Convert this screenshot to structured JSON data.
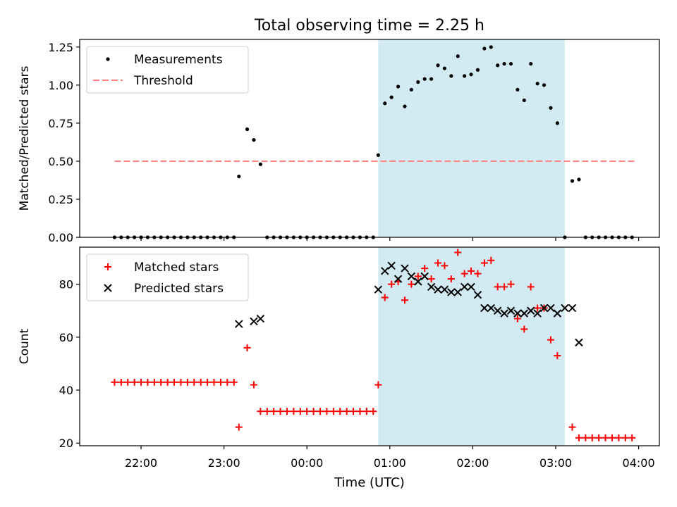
{
  "figure": {
    "title": "Total observing time = 2.25 h",
    "xlabel": "Time (UTC)",
    "xticks": [
      {
        "t": 22,
        "label": "22:00"
      },
      {
        "t": 23,
        "label": "23:00"
      },
      {
        "t": 24,
        "label": "00:00"
      },
      {
        "t": 25,
        "label": "01:00"
      },
      {
        "t": 26,
        "label": "02:00"
      },
      {
        "t": 27,
        "label": "03:00"
      },
      {
        "t": 28,
        "label": "04:00"
      }
    ],
    "xlim_hours": [
      21.26,
      28.25
    ],
    "observing_window_hours": [
      24.86,
      27.11
    ],
    "colors": {
      "span": "#add8e6",
      "threshold": "#ff7f7f",
      "matched": "#ff0000",
      "predicted": "#000000",
      "measurements": "#000000"
    }
  },
  "chart_data": [
    {
      "type": "scatter",
      "ylabel": "Matched/Predicted stars",
      "ylim": [
        0,
        1.3
      ],
      "yticks": [
        "0.00",
        "0.25",
        "0.50",
        "0.75",
        "1.00",
        "1.25"
      ],
      "legend": {
        "position": "top-left",
        "entries": [
          "Measurements",
          "Threshold"
        ]
      },
      "threshold": {
        "name": "Threshold",
        "y": 0.5,
        "x_range": [
          21.68,
          27.95
        ]
      },
      "series": [
        {
          "name": "Measurements",
          "marker": "dot",
          "x": [
            21.68,
            21.76,
            21.84,
            21.92,
            22.0,
            22.08,
            22.16,
            22.24,
            22.32,
            22.4,
            22.48,
            22.56,
            22.64,
            22.72,
            22.8,
            22.88,
            22.96,
            23.04,
            23.12,
            23.18,
            23.28,
            23.36,
            23.44,
            23.52,
            23.6,
            23.68,
            23.76,
            23.84,
            23.92,
            24.0,
            24.08,
            24.16,
            24.24,
            24.32,
            24.4,
            24.48,
            24.56,
            24.64,
            24.72,
            24.8,
            24.86,
            24.94,
            25.02,
            25.1,
            25.18,
            25.26,
            25.34,
            25.42,
            25.5,
            25.58,
            25.66,
            25.74,
            25.82,
            25.9,
            25.98,
            26.06,
            26.14,
            26.22,
            26.3,
            26.38,
            26.46,
            26.54,
            26.62,
            26.7,
            26.78,
            26.86,
            26.94,
            27.02,
            27.11,
            27.2,
            27.28,
            27.36,
            27.44,
            27.52,
            27.6,
            27.68,
            27.76,
            27.84,
            27.92
          ],
          "y": [
            0,
            0,
            0,
            0,
            0,
            0,
            0,
            0,
            0,
            0,
            0,
            0,
            0,
            0,
            0,
            0,
            0,
            0,
            0,
            0.4,
            0.71,
            0.64,
            0.48,
            0,
            0,
            0,
            0,
            0,
            0,
            0,
            0,
            0,
            0,
            0,
            0,
            0,
            0,
            0,
            0,
            0,
            0.54,
            0.88,
            0.92,
            0.99,
            0.86,
            0.97,
            1.02,
            1.04,
            1.04,
            1.13,
            1.11,
            1.06,
            1.19,
            1.06,
            1.07,
            1.1,
            1.24,
            1.25,
            1.13,
            1.14,
            1.14,
            0.97,
            0.9,
            1.14,
            1.01,
            1.0,
            0.85,
            0.75,
            0,
            0.37,
            0.38,
            0,
            0,
            0,
            0,
            0,
            0,
            0,
            0
          ]
        }
      ]
    },
    {
      "type": "scatter",
      "ylabel": "Count",
      "ylim": [
        19,
        94
      ],
      "yticks": [
        "20",
        "40",
        "60",
        "80"
      ],
      "legend": {
        "position": "top-left",
        "entries": [
          "Matched stars",
          "Predicted stars"
        ]
      },
      "series": [
        {
          "name": "Matched stars",
          "marker": "plus",
          "x": [
            21.68,
            21.76,
            21.84,
            21.92,
            22.0,
            22.08,
            22.16,
            22.24,
            22.32,
            22.4,
            22.48,
            22.56,
            22.64,
            22.72,
            22.8,
            22.88,
            22.96,
            23.04,
            23.12,
            23.18,
            23.28,
            23.36,
            23.44,
            23.52,
            23.6,
            23.68,
            23.76,
            23.84,
            23.92,
            24.0,
            24.08,
            24.16,
            24.24,
            24.32,
            24.4,
            24.48,
            24.56,
            24.64,
            24.72,
            24.8,
            24.86,
            24.94,
            25.02,
            25.1,
            25.18,
            25.26,
            25.34,
            25.42,
            25.5,
            25.58,
            25.66,
            25.74,
            25.82,
            25.9,
            25.98,
            26.06,
            26.14,
            26.22,
            26.3,
            26.38,
            26.46,
            26.54,
            26.62,
            26.7,
            26.78,
            26.86,
            26.94,
            27.02,
            27.11,
            27.2,
            27.28,
            27.36,
            27.44,
            27.52,
            27.6,
            27.68,
            27.76,
            27.84,
            27.92
          ],
          "y": [
            43,
            43,
            43,
            43,
            43,
            43,
            43,
            43,
            43,
            43,
            43,
            43,
            43,
            43,
            43,
            43,
            43,
            43,
            43,
            26,
            56,
            42,
            32,
            32,
            32,
            32,
            32,
            32,
            32,
            32,
            32,
            32,
            32,
            32,
            32,
            32,
            32,
            32,
            32,
            32,
            42,
            75,
            80,
            81,
            74,
            80,
            83,
            86,
            82,
            88,
            87,
            82,
            92,
            84,
            85,
            84,
            88,
            89,
            79,
            79,
            80,
            67,
            63,
            79,
            71,
            71,
            59,
            53,
            null,
            26,
            22,
            22,
            22,
            22,
            22,
            22,
            22,
            22,
            22
          ]
        },
        {
          "name": "Predicted stars",
          "marker": "x",
          "x": [
            23.18,
            23.36,
            23.44,
            24.86,
            24.94,
            25.02,
            25.1,
            25.18,
            25.26,
            25.34,
            25.42,
            25.5,
            25.58,
            25.66,
            25.74,
            25.82,
            25.9,
            25.98,
            26.06,
            26.14,
            26.22,
            26.3,
            26.38,
            26.46,
            26.54,
            26.62,
            26.7,
            26.78,
            26.86,
            26.94,
            27.02,
            27.11,
            27.2,
            27.28
          ],
          "y": [
            65,
            66,
            67,
            78,
            85,
            87,
            82,
            86,
            83,
            81,
            83,
            79,
            78,
            78,
            77,
            77,
            79,
            79,
            76,
            71,
            71,
            70,
            69,
            70,
            69,
            69,
            70,
            69,
            71,
            71,
            69,
            71,
            71,
            58
          ]
        }
      ]
    }
  ]
}
